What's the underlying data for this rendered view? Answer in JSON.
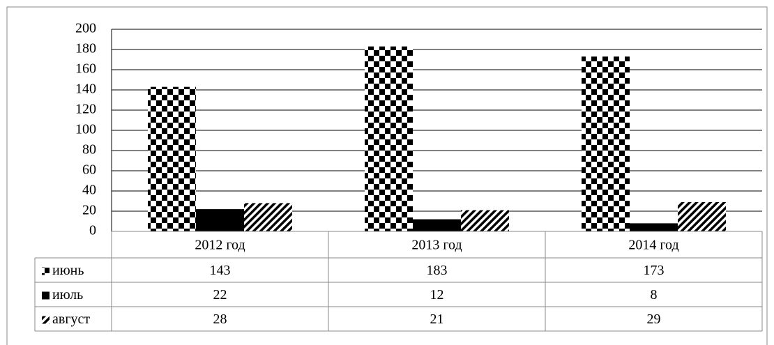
{
  "chart_data": {
    "type": "bar",
    "categories": [
      "2012 год",
      "2013 год",
      "2014 год"
    ],
    "series": [
      {
        "name": "июнь",
        "color": "#000000",
        "pattern": "checker",
        "values": [
          143,
          183,
          173
        ]
      },
      {
        "name": "июль",
        "color": "#000000",
        "pattern": "solid",
        "values": [
          22,
          12,
          8
        ]
      },
      {
        "name": "август",
        "color": "#000000",
        "pattern": "diagonal",
        "values": [
          28,
          21,
          29
        ]
      }
    ],
    "ylim": [
      0,
      200
    ],
    "yticks": [
      0,
      20,
      40,
      60,
      80,
      100,
      120,
      140,
      160,
      180,
      200
    ],
    "grid": true,
    "data_table": true
  }
}
